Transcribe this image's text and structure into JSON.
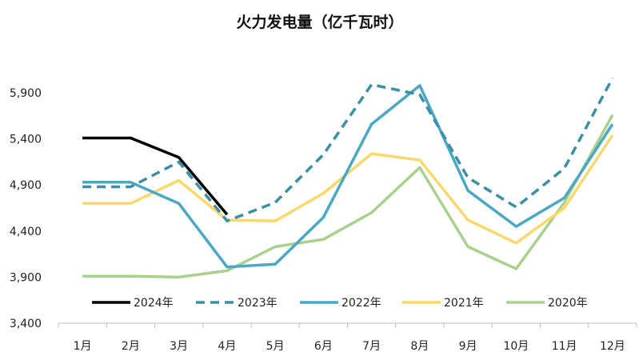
{
  "chart_data": {
    "type": "line",
    "title": "火力发电量（亿千瓦时）",
    "xlabel": "",
    "ylabel": "",
    "categories": [
      "1月",
      "2月",
      "3月",
      "4月",
      "5月",
      "6月",
      "7月",
      "8月",
      "9月",
      "10月",
      "11月",
      "12月"
    ],
    "y_ticks": [
      "3,400",
      "3,900",
      "4,400",
      "4,900",
      "5,400",
      "5,900"
    ],
    "ylim": [
      3400,
      6300
    ],
    "grid": false,
    "legend_position": "bottom-inside",
    "series": [
      {
        "name": "2024年",
        "color": "#000000",
        "style": "solid",
        "values": [
          5410,
          5410,
          5200,
          4580,
          null,
          null,
          null,
          null,
          null,
          null,
          null,
          null
        ]
      },
      {
        "name": "2023年",
        "color": "#3a8fa5",
        "style": "dashed",
        "values": [
          4880,
          4880,
          5150,
          4510,
          4710,
          5230,
          5990,
          5880,
          4980,
          4660,
          5080,
          6060
        ]
      },
      {
        "name": "2022年",
        "color": "#4aa8c4",
        "style": "solid",
        "values": [
          4930,
          4930,
          4700,
          4010,
          4040,
          4550,
          5560,
          5980,
          4840,
          4450,
          4760,
          5560
        ]
      },
      {
        "name": "2021年",
        "color": "#fad86c",
        "style": "solid",
        "values": [
          4700,
          4700,
          4950,
          4520,
          4510,
          4810,
          5240,
          5170,
          4520,
          4270,
          4650,
          5440
        ]
      },
      {
        "name": "2020年",
        "color": "#a9d18e",
        "style": "solid",
        "values": [
          3910,
          3910,
          3900,
          3970,
          4230,
          4310,
          4600,
          5090,
          4230,
          3990,
          4710,
          5660
        ]
      }
    ]
  }
}
